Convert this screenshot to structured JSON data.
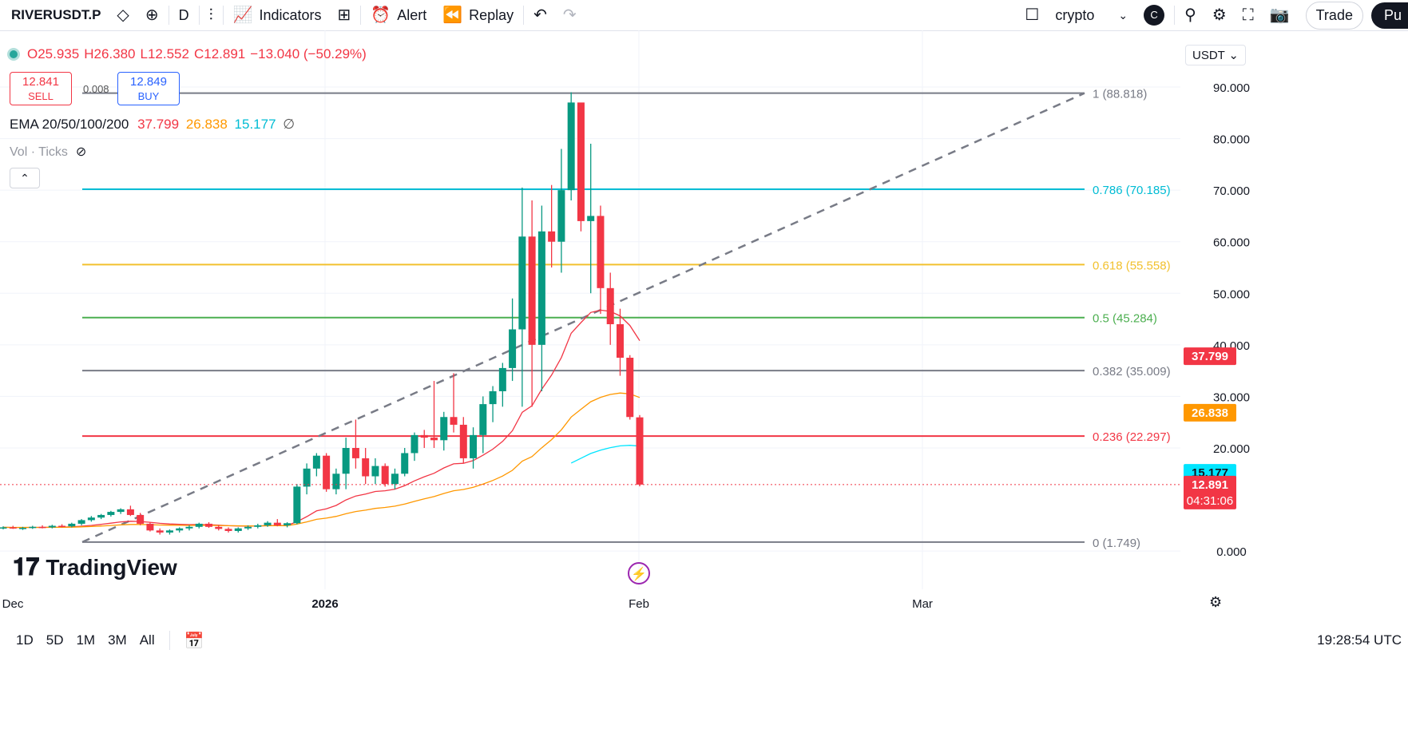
{
  "toolbar": {
    "symbol": "RIVERUSDT.P",
    "interval": "D",
    "indicators_label": "Indicators",
    "alert_label": "Alert",
    "replay_label": "Replay",
    "layout_name": "crypto",
    "avatar_letter": "C",
    "trade_label": "Trade",
    "publish_label": "Pu"
  },
  "legend": {
    "open": "O25.935",
    "high": "H26.380",
    "low": "L12.552",
    "close": "C12.891",
    "change": "−13.040 (−50.29%)"
  },
  "trade": {
    "sell_price": "12.841",
    "sell_label": "SELL",
    "buy_price": "12.849",
    "buy_label": "BUY",
    "spread": "0.008"
  },
  "ema": {
    "label": "EMA 20/50/100/200",
    "v20": "37.799",
    "v50": "26.838",
    "v100": "15.177",
    "v200": "∅"
  },
  "vol_label": "Vol · Ticks",
  "currency": "USDT",
  "bottom": {
    "ranges": [
      "1D",
      "5D",
      "1M",
      "3M",
      "All"
    ],
    "time": "19:28:54 UTC"
  },
  "logo_text": "TradingView",
  "chart_data": {
    "type": "candlestick",
    "ylim": [
      -2.5,
      93
    ],
    "yticks": [
      "0.000",
      "20.000",
      "30.000",
      "40.000",
      "50.000",
      "60.000",
      "70.000",
      "80.000",
      "90.000"
    ],
    "ytick_values": [
      0,
      20,
      30,
      40,
      50,
      60,
      70,
      80,
      90
    ],
    "xticks": [
      "Dec",
      "2026",
      "Feb",
      "Mar"
    ],
    "fib_levels": [
      {
        "ratio": "1",
        "value": 88.818,
        "label": "1 (88.818)",
        "color": "#787b86"
      },
      {
        "ratio": "0.786",
        "value": 70.185,
        "label": "0.786 (70.185)",
        "color": "#00bcd4"
      },
      {
        "ratio": "0.618",
        "value": 55.558,
        "label": "0.618 (55.558)",
        "color": "#f2c12e"
      },
      {
        "ratio": "0.5",
        "value": 45.284,
        "label": "0.5 (45.284)",
        "color": "#4caf50"
      },
      {
        "ratio": "0.382",
        "value": 35.009,
        "label": "0.382 (35.009)",
        "color": "#787b86"
      },
      {
        "ratio": "0.236",
        "value": 22.297,
        "label": "0.236 (22.297)",
        "color": "#f23645"
      },
      {
        "ratio": "0",
        "value": 1.749,
        "label": "0 (1.749)",
        "color": "#787b86"
      }
    ],
    "price_labels": [
      {
        "value": 37.799,
        "label": "37.799",
        "color": "#f23645"
      },
      {
        "value": 26.838,
        "label": "26.838",
        "color": "#ff9800"
      },
      {
        "value": 15.177,
        "label": "15.177",
        "color": "#00e5ff"
      },
      {
        "value": 12.891,
        "label": "12.891",
        "sub": "04:31:06",
        "color": "#f23645"
      }
    ],
    "candles": [
      [
        4.5,
        4.8,
        4.2,
        4.6
      ],
      [
        4.6,
        4.9,
        4.3,
        4.4
      ],
      [
        4.4,
        4.7,
        4.1,
        4.5
      ],
      [
        4.5,
        4.9,
        4.3,
        4.7
      ],
      [
        4.7,
        5.0,
        4.4,
        4.6
      ],
      [
        4.6,
        5.1,
        4.4,
        4.9
      ],
      [
        4.9,
        5.2,
        4.6,
        4.8
      ],
      [
        4.8,
        5.5,
        4.6,
        5.3
      ],
      [
        5.3,
        6.2,
        5.0,
        6.0
      ],
      [
        6.0,
        6.8,
        5.7,
        6.5
      ],
      [
        6.5,
        7.2,
        6.2,
        7.0
      ],
      [
        7.0,
        7.8,
        6.7,
        7.6
      ],
      [
        7.6,
        8.3,
        7.2,
        8.1
      ],
      [
        8.1,
        8.8,
        6.8,
        7.0
      ],
      [
        7.0,
        7.4,
        5.0,
        5.3
      ],
      [
        5.3,
        5.6,
        3.8,
        4.0
      ],
      [
        4.0,
        4.4,
        3.2,
        3.6
      ],
      [
        3.6,
        4.2,
        3.2,
        4.0
      ],
      [
        4.0,
        4.6,
        3.6,
        4.4
      ],
      [
        4.4,
        5.0,
        4.0,
        4.7
      ],
      [
        4.7,
        5.5,
        4.4,
        5.3
      ],
      [
        5.3,
        5.6,
        4.5,
        4.7
      ],
      [
        4.7,
        5.0,
        4.0,
        4.3
      ],
      [
        4.3,
        4.6,
        3.6,
        3.9
      ],
      [
        3.9,
        4.6,
        3.6,
        4.4
      ],
      [
        4.4,
        5.0,
        4.1,
        4.7
      ],
      [
        4.7,
        5.3,
        4.4,
        5.0
      ],
      [
        5.0,
        5.8,
        4.7,
        5.5
      ],
      [
        5.5,
        6.2,
        4.8,
        5.0
      ],
      [
        5.0,
        5.6,
        4.6,
        5.4
      ],
      [
        5.4,
        13.0,
        5.2,
        12.5
      ],
      [
        12.5,
        17.0,
        11.0,
        16.0
      ],
      [
        16.0,
        19.0,
        14.5,
        18.5
      ],
      [
        18.5,
        19.0,
        11.5,
        12.0
      ],
      [
        12.0,
        16.0,
        11.0,
        15.0
      ],
      [
        15.0,
        22.0,
        12.0,
        20.0
      ],
      [
        20.0,
        25.5,
        16.0,
        18.0
      ],
      [
        18.0,
        20.0,
        13.0,
        14.5
      ],
      [
        14.5,
        18.0,
        13.0,
        16.5
      ],
      [
        16.5,
        17.0,
        12.5,
        13.0
      ],
      [
        13.0,
        16.0,
        12.0,
        15.0
      ],
      [
        15.0,
        20.0,
        14.5,
        19.0
      ],
      [
        19.0,
        23.0,
        17.5,
        22.5
      ],
      [
        22.5,
        23.5,
        20.0,
        22.0
      ],
      [
        22.0,
        33.0,
        20.0,
        21.5
      ],
      [
        21.5,
        27.0,
        19.5,
        26.0
      ],
      [
        26.0,
        34.5,
        23.0,
        24.5
      ],
      [
        24.5,
        26.0,
        17.0,
        18.0
      ],
      [
        18.0,
        24.0,
        16.0,
        22.5
      ],
      [
        22.5,
        30.0,
        19.0,
        28.5
      ],
      [
        28.5,
        32.0,
        25.0,
        31.0
      ],
      [
        31.0,
        36.5,
        28.0,
        35.5
      ],
      [
        35.5,
        49.0,
        33.0,
        43.0
      ],
      [
        43.0,
        70.5,
        28.0,
        61.0
      ],
      [
        61.0,
        68.0,
        28.0,
        40.0
      ],
      [
        40.0,
        67.0,
        31.0,
        62.0
      ],
      [
        62.0,
        71.0,
        55.0,
        60.0
      ],
      [
        60.0,
        78.0,
        54.0,
        70.0
      ],
      [
        70.0,
        89.0,
        68.0,
        87.0
      ],
      [
        87.0,
        86.5,
        62.0,
        64.0
      ],
      [
        64.0,
        79.0,
        50.0,
        65.0
      ],
      [
        65.0,
        67.0,
        46.0,
        51.0
      ],
      [
        51.0,
        54.0,
        40.0,
        44.0
      ],
      [
        44.0,
        47.0,
        34.0,
        37.5
      ],
      [
        37.5,
        38.0,
        25.5,
        26.0
      ],
      [
        25.935,
        26.38,
        12.552,
        12.891
      ]
    ]
  }
}
